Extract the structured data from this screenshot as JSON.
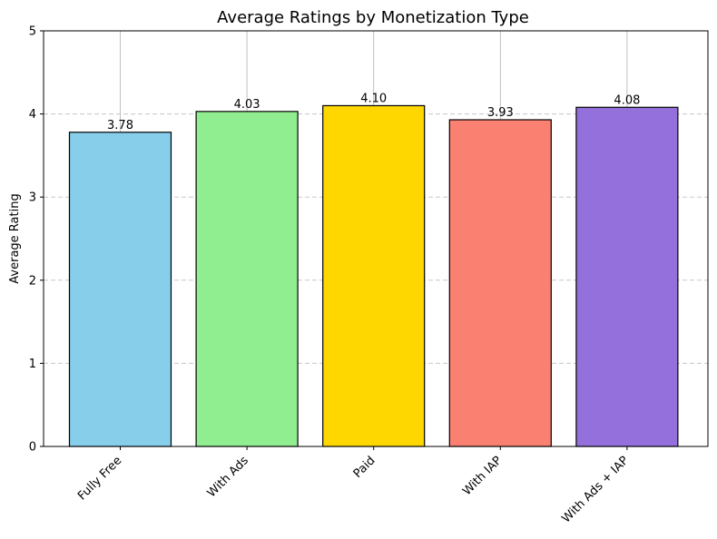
{
  "chart_data": {
    "type": "bar",
    "title": "Average Ratings by Monetization Type",
    "xlabel": "",
    "ylabel": "Average Rating",
    "categories": [
      "Fully Free",
      "With Ads",
      "Paid",
      "With IAP",
      "With Ads + IAP"
    ],
    "values": [
      3.78,
      4.03,
      4.1,
      3.93,
      4.08
    ],
    "value_labels": [
      "3.78",
      "4.03",
      "4.10",
      "3.93",
      "4.08"
    ],
    "colors": [
      "#87ceeb",
      "#90ee90",
      "#ffd700",
      "#fa8072",
      "#9370db"
    ],
    "ylim": [
      0,
      5
    ],
    "yticks": [
      0,
      1,
      2,
      3,
      4,
      5
    ],
    "ytick_labels": [
      "0",
      "1",
      "2",
      "3",
      "4",
      "5"
    ],
    "grid": "dashed horizontal, solid vertical",
    "legend": "none"
  }
}
